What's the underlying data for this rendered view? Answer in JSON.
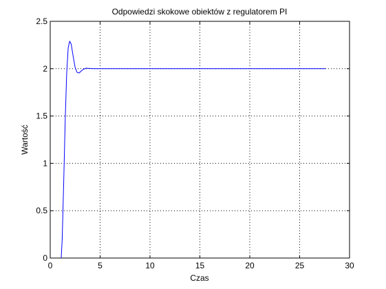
{
  "chart_data": {
    "type": "line",
    "title": "Odpowiedzi skokowe obiektów z regulatorem PI",
    "xlabel": "Czas",
    "ylabel": "Wartość",
    "xlim": [
      0,
      30
    ],
    "ylim": [
      0,
      2.5
    ],
    "x_ticks": [
      0,
      5,
      10,
      15,
      20,
      25,
      30
    ],
    "y_ticks": [
      0,
      0.5,
      1,
      1.5,
      2,
      2.5
    ],
    "x_tick_labels": [
      "0",
      "5",
      "10",
      "15",
      "20",
      "25",
      "30"
    ],
    "y_tick_labels": [
      "0",
      "0.5",
      "1",
      "1.5",
      "2",
      "2.5"
    ],
    "grid": true,
    "legend": "none",
    "series": [
      {
        "color": "#0000ff",
        "points": [
          [
            1.1,
            0.0
          ],
          [
            1.2,
            0.2
          ],
          [
            1.35,
            0.8
          ],
          [
            1.5,
            1.45
          ],
          [
            1.65,
            1.95
          ],
          [
            1.8,
            2.22
          ],
          [
            1.95,
            2.29
          ],
          [
            2.1,
            2.26
          ],
          [
            2.3,
            2.13
          ],
          [
            2.5,
            2.01
          ],
          [
            2.7,
            1.96
          ],
          [
            2.9,
            1.955
          ],
          [
            3.1,
            1.975
          ],
          [
            3.35,
            1.995
          ],
          [
            3.6,
            2.005
          ],
          [
            3.9,
            2.003
          ],
          [
            4.3,
            2.0
          ],
          [
            10,
            2.0
          ],
          [
            20,
            2.0
          ],
          [
            27.6,
            2.0
          ]
        ]
      }
    ]
  }
}
